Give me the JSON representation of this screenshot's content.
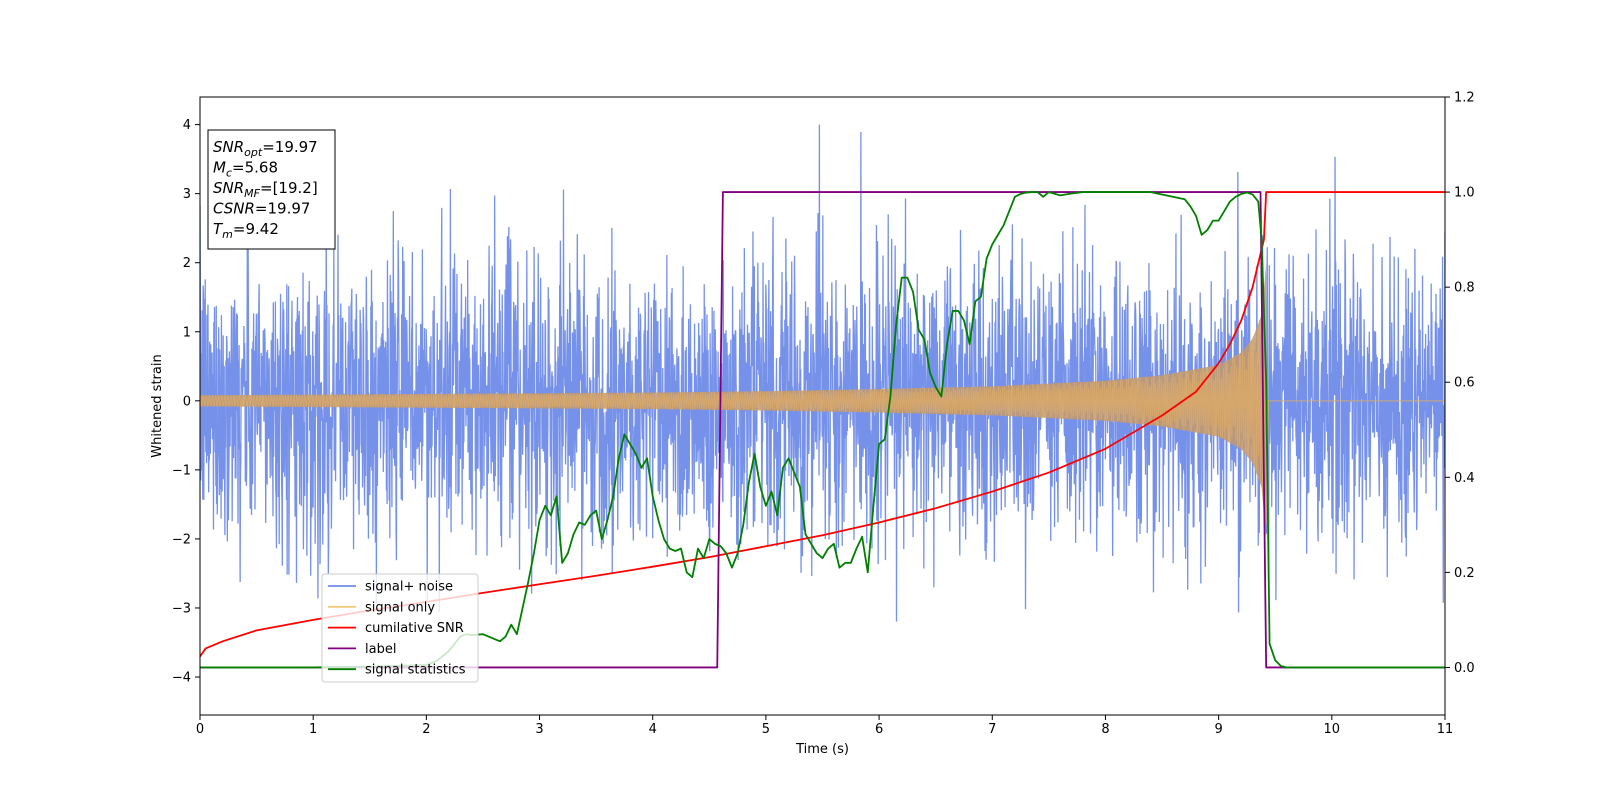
{
  "chart_data": {
    "type": "line",
    "xlabel": "Time (s)",
    "ylabel": "Whitened strain",
    "xlim": [
      0,
      11
    ],
    "ylim_left": [
      -4.55,
      4.4
    ],
    "ylim_right": [
      -0.1,
      1.2
    ],
    "x_ticks": [
      0,
      1,
      2,
      3,
      4,
      5,
      6,
      7,
      8,
      9,
      10,
      11
    ],
    "y_left_ticks": [
      -4,
      -3,
      -2,
      -1,
      0,
      1,
      2,
      3,
      4
    ],
    "y_right_ticks": [
      0.0,
      0.2,
      0.4,
      0.6,
      0.8,
      1.0,
      1.2
    ],
    "grid": false,
    "legend_position": "lower-left",
    "annotation": {
      "lines": [
        {
          "name": "SNR",
          "sub": "opt",
          "value": "=19.97"
        },
        {
          "name": "M",
          "sub": "c",
          "value": "=5.68"
        },
        {
          "name": "SNR",
          "sub": "MF",
          "value": "=[19.2]"
        },
        {
          "name": "CSNR",
          "sub": "",
          "value": "=19.97"
        },
        {
          "name": "T",
          "sub": "m",
          "value": "=9.42"
        }
      ]
    },
    "merger_time": 9.42,
    "series": [
      {
        "name": "signal+ noise",
        "color": "#6f8be8",
        "axis": "left",
        "description_values": {
          "band_typical": [
            -2.5,
            2.5
          ],
          "peak_max": 4.0,
          "peak_min": -4.15
        }
      },
      {
        "name": "signal only",
        "color": "#f7c97a",
        "axis": "left",
        "amplitude_envelope": {
          "x": [
            0,
            1,
            2,
            3,
            4,
            5,
            6,
            7,
            8,
            8.5,
            9.0,
            9.2,
            9.3,
            9.38,
            9.42
          ],
          "y": [
            0.08,
            0.09,
            0.1,
            0.11,
            0.12,
            0.14,
            0.17,
            0.21,
            0.29,
            0.37,
            0.52,
            0.7,
            0.9,
            1.25,
            2.0
          ]
        }
      },
      {
        "name": "cumilative SNR",
        "color": "#ff0000",
        "axis": "right",
        "x": [
          0,
          0.05,
          0.2,
          0.5,
          1,
          1.5,
          2,
          2.5,
          3,
          3.5,
          4,
          4.5,
          5,
          5.5,
          6,
          6.5,
          7,
          7.5,
          8,
          8.5,
          8.8,
          9.0,
          9.1,
          9.2,
          9.3,
          9.35,
          9.4,
          9.42,
          11
        ],
        "y": [
          0.023,
          0.04,
          0.055,
          0.078,
          0.1,
          0.12,
          0.138,
          0.157,
          0.175,
          0.193,
          0.212,
          0.232,
          0.255,
          0.278,
          0.305,
          0.335,
          0.37,
          0.41,
          0.46,
          0.53,
          0.58,
          0.64,
          0.68,
          0.73,
          0.8,
          0.85,
          0.9,
          1.0,
          1.0
        ]
      },
      {
        "name": "label",
        "color": "#800080",
        "axis": "right",
        "x": [
          0,
          4.57,
          4.62,
          9.37,
          9.42,
          11
        ],
        "y": [
          0,
          0,
          1,
          1,
          0,
          0
        ]
      },
      {
        "name": "signal statistics",
        "color": "#008000",
        "axis": "right",
        "x": [
          0,
          0.5,
          1,
          1.5,
          2,
          2.1,
          2.2,
          2.3,
          2.35,
          2.4,
          2.5,
          2.6,
          2.65,
          2.7,
          2.75,
          2.8,
          2.9,
          2.95,
          3.0,
          3.05,
          3.1,
          3.15,
          3.2,
          3.25,
          3.3,
          3.35,
          3.4,
          3.45,
          3.5,
          3.55,
          3.6,
          3.65,
          3.7,
          3.75,
          3.8,
          3.85,
          3.9,
          3.95,
          4.0,
          4.05,
          4.1,
          4.15,
          4.2,
          4.25,
          4.3,
          4.35,
          4.4,
          4.45,
          4.5,
          4.55,
          4.6,
          4.65,
          4.7,
          4.75,
          4.8,
          4.85,
          4.9,
          4.95,
          5.0,
          5.05,
          5.1,
          5.15,
          5.2,
          5.25,
          5.3,
          5.35,
          5.4,
          5.45,
          5.5,
          5.55,
          5.6,
          5.65,
          5.7,
          5.75,
          5.8,
          5.85,
          5.9,
          5.95,
          6.0,
          6.05,
          6.1,
          6.15,
          6.2,
          6.25,
          6.3,
          6.35,
          6.4,
          6.45,
          6.5,
          6.55,
          6.6,
          6.65,
          6.7,
          6.75,
          6.8,
          6.85,
          6.9,
          6.95,
          7.0,
          7.05,
          7.1,
          7.15,
          7.2,
          7.25,
          7.3,
          7.35,
          7.4,
          7.45,
          7.5,
          7.6,
          7.7,
          7.8,
          7.9,
          8.0,
          8.2,
          8.4,
          8.5,
          8.6,
          8.7,
          8.75,
          8.8,
          8.85,
          8.9,
          8.95,
          9.0,
          9.05,
          9.1,
          9.15,
          9.2,
          9.25,
          9.3,
          9.35,
          9.38,
          9.42,
          9.45,
          9.5,
          9.55,
          9.6,
          9.7,
          10,
          11
        ],
        "y": [
          0,
          0,
          0,
          0.002,
          0.005,
          0.015,
          0.035,
          0.065,
          0.07,
          0.068,
          0.07,
          0.06,
          0.055,
          0.065,
          0.09,
          0.07,
          0.18,
          0.24,
          0.31,
          0.34,
          0.32,
          0.36,
          0.22,
          0.24,
          0.28,
          0.305,
          0.3,
          0.32,
          0.33,
          0.27,
          0.31,
          0.36,
          0.44,
          0.49,
          0.47,
          0.45,
          0.42,
          0.44,
          0.36,
          0.31,
          0.27,
          0.25,
          0.245,
          0.25,
          0.2,
          0.19,
          0.25,
          0.23,
          0.27,
          0.26,
          0.255,
          0.24,
          0.21,
          0.24,
          0.3,
          0.39,
          0.45,
          0.38,
          0.34,
          0.37,
          0.32,
          0.42,
          0.44,
          0.41,
          0.38,
          0.28,
          0.26,
          0.24,
          0.23,
          0.25,
          0.26,
          0.21,
          0.22,
          0.22,
          0.25,
          0.275,
          0.2,
          0.34,
          0.47,
          0.48,
          0.57,
          0.72,
          0.82,
          0.82,
          0.79,
          0.71,
          0.69,
          0.62,
          0.59,
          0.57,
          0.68,
          0.75,
          0.75,
          0.73,
          0.68,
          0.77,
          0.78,
          0.86,
          0.89,
          0.91,
          0.93,
          0.96,
          0.99,
          0.996,
          0.999,
          1.0,
          1.0,
          0.99,
          1.0,
          0.993,
          0.997,
          1.0,
          1.0,
          1.0,
          1.0,
          1.0,
          0.995,
          0.99,
          0.985,
          0.97,
          0.95,
          0.91,
          0.92,
          0.94,
          0.94,
          0.96,
          0.98,
          0.99,
          0.996,
          0.999,
          0.995,
          0.98,
          0.9,
          0.6,
          0.05,
          0.015,
          0.003,
          0.0,
          0.0,
          0.0,
          0.0
        ]
      }
    ]
  }
}
